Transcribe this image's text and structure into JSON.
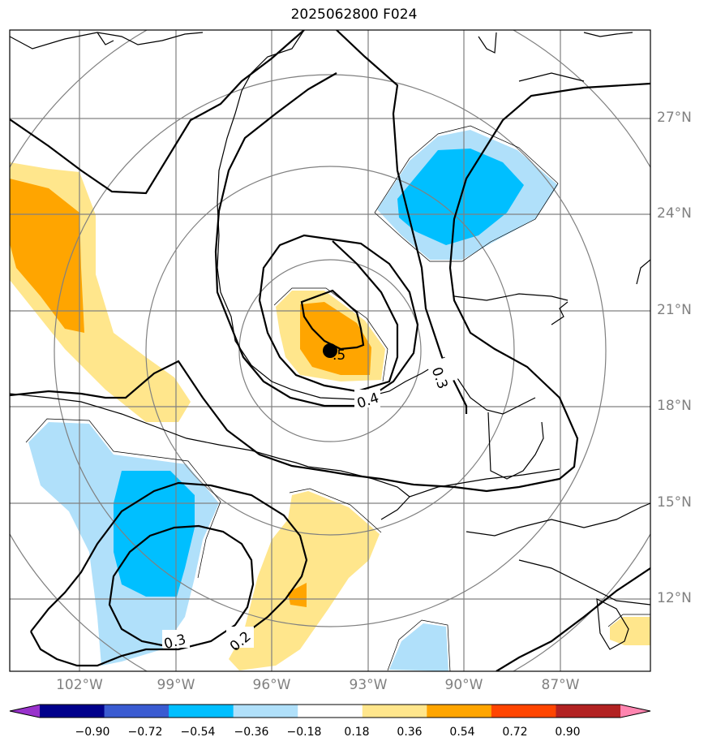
{
  "title": "2025062800 F024",
  "lat_labels": [
    "27°N",
    "24°N",
    "21°N",
    "18°N",
    "15°N",
    "12°N"
  ],
  "lon_labels": [
    "102°W",
    "99°W",
    "96°W",
    "93°W",
    "90°W",
    "87°W"
  ],
  "contour_labels": [
    "0.3",
    "0.4",
    ".5",
    "0.3",
    "0.2"
  ],
  "colorbar": {
    "tick_labels": [
      "−0.90",
      "−0.72",
      "−0.54",
      "−0.36",
      "−0.18",
      "0.18",
      "0.36",
      "0.54",
      "0.72",
      "0.90"
    ],
    "colors": [
      "#9932cc",
      "#00008b",
      "#3a5bd1",
      "#00bfff",
      "#b0e0fa",
      "#ffffff",
      "#ffe68c",
      "#ffa500",
      "#ff4500",
      "#b22222",
      "#ff85b0"
    ]
  },
  "colors": {
    "shade_light_yellow": "#ffe68c",
    "shade_orange": "#ffa500",
    "shade_light_blue": "#b0e0fa",
    "shade_blue": "#00bfff",
    "gridline": "#808080",
    "coastline": "#000000"
  },
  "marker": "storm-center-dot"
}
